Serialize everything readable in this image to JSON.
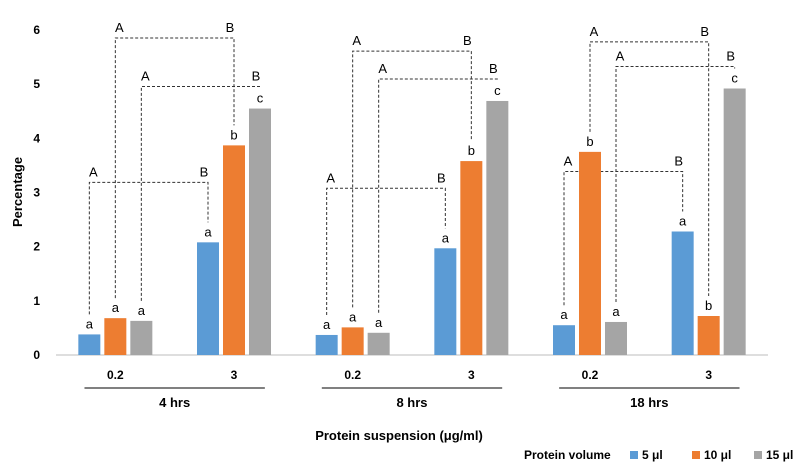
{
  "chart_data": {
    "type": "bar",
    "ylabel": "Percentage",
    "xlabel": "Protein suspension (μg/ml)",
    "ylim": [
      0,
      6
    ],
    "yticks": [
      "0",
      "1",
      "2",
      "3",
      "4",
      "5",
      "6"
    ],
    "legend": {
      "title": "Protein volume",
      "placement": "bottom-right"
    },
    "series": [
      {
        "name": "5 μl",
        "color": "#5b9bd5"
      },
      {
        "name": "10 μl",
        "color": "#ed7d31"
      },
      {
        "name": "15 μl",
        "color": "#a5a5a5"
      }
    ],
    "groups": [
      {
        "label": "4 hrs",
        "subgroups": [
          {
            "label": "0.2",
            "values": [
              0.38,
              0.68,
              0.63
            ],
            "letters": [
              "a",
              "a",
              "a"
            ]
          },
          {
            "label": "3",
            "values": [
              2.08,
              3.87,
              4.55
            ],
            "letters": [
              "a",
              "b",
              "c"
            ]
          }
        ]
      },
      {
        "label": "8 hrs",
        "subgroups": [
          {
            "label": "0.2",
            "values": [
              0.37,
              0.51,
              0.41
            ],
            "letters": [
              "a",
              "a",
              "a"
            ]
          },
          {
            "label": "3",
            "values": [
              1.97,
              3.58,
              4.69
            ],
            "letters": [
              "a",
              "b",
              "c"
            ]
          }
        ]
      },
      {
        "label": "18 hrs",
        "subgroups": [
          {
            "label": "0.2",
            "values": [
              0.55,
              3.75,
              0.61
            ],
            "letters": [
              "a",
              "b",
              "a"
            ]
          },
          {
            "label": "3",
            "values": [
              2.28,
              0.72,
              4.92
            ],
            "letters": [
              "a",
              "b",
              "c"
            ]
          }
        ]
      }
    ],
    "comparisons": [
      {
        "group": 0,
        "series": 0,
        "letters": [
          "A",
          "B"
        ]
      },
      {
        "group": 0,
        "series": 1,
        "letters": [
          "A",
          "B"
        ]
      },
      {
        "group": 0,
        "series": 2,
        "letters": [
          "A",
          "B"
        ]
      },
      {
        "group": 1,
        "series": 0,
        "letters": [
          "A",
          "B"
        ]
      },
      {
        "group": 1,
        "series": 1,
        "letters": [
          "A",
          "B"
        ]
      },
      {
        "group": 1,
        "series": 2,
        "letters": [
          "A",
          "B"
        ]
      },
      {
        "group": 2,
        "series": 0,
        "letters": [
          "A",
          "B"
        ]
      },
      {
        "group": 2,
        "series": 1,
        "letters": [
          "A",
          "B"
        ]
      },
      {
        "group": 2,
        "series": 2,
        "letters": [
          "A",
          "B"
        ]
      }
    ]
  }
}
